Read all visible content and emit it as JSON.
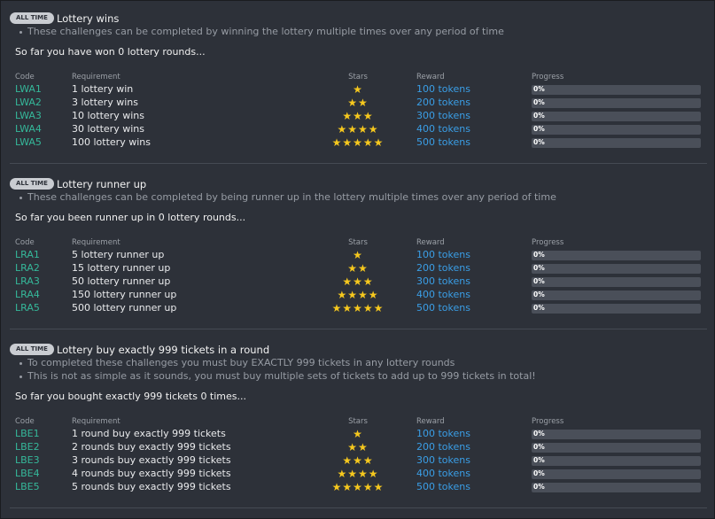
{
  "sections": [
    {
      "badge": "ALL TIME",
      "title": "Lottery wins",
      "bullets": [
        "These challenges can be completed by winning the lottery multiple times over any period of time"
      ],
      "summary": "So far you have won 0 lottery rounds...",
      "columns": [
        "Code",
        "Requirement",
        "Stars",
        "Reward",
        "Progress"
      ],
      "rows": [
        {
          "code": "LWA1",
          "requirement": "1 lottery win",
          "stars": 1,
          "reward": "100 tokens",
          "progress": "0%"
        },
        {
          "code": "LWA2",
          "requirement": "3 lottery wins",
          "stars": 2,
          "reward": "200 tokens",
          "progress": "0%"
        },
        {
          "code": "LWA3",
          "requirement": "10 lottery wins",
          "stars": 3,
          "reward": "300 tokens",
          "progress": "0%"
        },
        {
          "code": "LWA4",
          "requirement": "30 lottery wins",
          "stars": 4,
          "reward": "400 tokens",
          "progress": "0%"
        },
        {
          "code": "LWA5",
          "requirement": "100 lottery wins",
          "stars": 5,
          "reward": "500 tokens",
          "progress": "0%"
        }
      ]
    },
    {
      "badge": "ALL TIME",
      "title": "Lottery runner up",
      "bullets": [
        "These challenges can be completed by being runner up in the lottery multiple times over any period of time"
      ],
      "summary": "So far you been runner up in 0 lottery rounds...",
      "columns": [
        "Code",
        "Requirement",
        "Stars",
        "Reward",
        "Progress"
      ],
      "rows": [
        {
          "code": "LRA1",
          "requirement": "5 lottery runner up",
          "stars": 1,
          "reward": "100 tokens",
          "progress": "0%"
        },
        {
          "code": "LRA2",
          "requirement": "15 lottery runner up",
          "stars": 2,
          "reward": "200 tokens",
          "progress": "0%"
        },
        {
          "code": "LRA3",
          "requirement": "50 lottery runner up",
          "stars": 3,
          "reward": "300 tokens",
          "progress": "0%"
        },
        {
          "code": "LRA4",
          "requirement": "150 lottery runner up",
          "stars": 4,
          "reward": "400 tokens",
          "progress": "0%"
        },
        {
          "code": "LRA5",
          "requirement": "500 lottery runner up",
          "stars": 5,
          "reward": "500 tokens",
          "progress": "0%"
        }
      ]
    },
    {
      "badge": "ALL TIME",
      "title": "Lottery buy exactly 999 tickets in a round",
      "bullets": [
        "To completed these challenges you must buy EXACTLY 999 tickets in any lottery rounds",
        "This is not as simple as it sounds, you must buy multiple sets of tickets to add up to 999 tickets in total!"
      ],
      "summary": "So far you bought exactly 999 tickets 0 times...",
      "columns": [
        "Code",
        "Requirement",
        "Stars",
        "Reward",
        "Progress"
      ],
      "rows": [
        {
          "code": "LBE1",
          "requirement": "1 round buy exactly 999 tickets",
          "stars": 1,
          "reward": "100 tokens",
          "progress": "0%"
        },
        {
          "code": "LBE2",
          "requirement": "2 rounds buy exactly 999 tickets",
          "stars": 2,
          "reward": "200 tokens",
          "progress": "0%"
        },
        {
          "code": "LBE3",
          "requirement": "3 rounds buy exactly 999 tickets",
          "stars": 3,
          "reward": "300 tokens",
          "progress": "0%"
        },
        {
          "code": "LBE4",
          "requirement": "4 rounds buy exactly 999 tickets",
          "stars": 4,
          "reward": "400 tokens",
          "progress": "0%"
        },
        {
          "code": "LBE5",
          "requirement": "5 rounds buy exactly 999 tickets",
          "stars": 5,
          "reward": "500 tokens",
          "progress": "0%"
        }
      ]
    }
  ]
}
